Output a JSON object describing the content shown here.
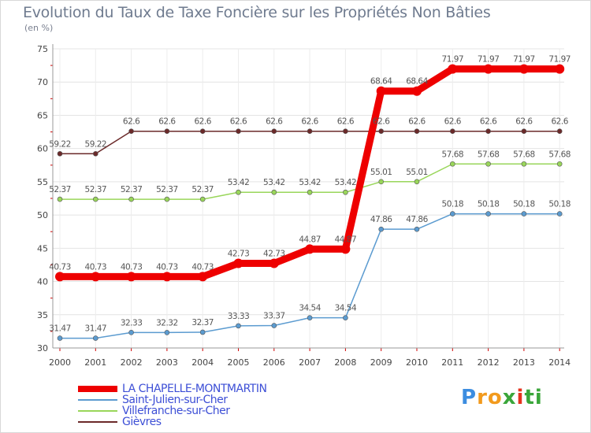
{
  "title": "Evolution du Taux de Taxe Foncière sur les Propriétés Non Bâties",
  "unit": "(en %)",
  "logo": {
    "letters": [
      "P",
      "r",
      "o",
      "x",
      "i",
      "t",
      "i"
    ],
    "colors": [
      "#3c8de0",
      "#f29a1d",
      "#f29a1d",
      "#3aa63a",
      "#e6321e",
      "#3aa63a",
      "#3aa63a"
    ]
  },
  "chart_data": {
    "type": "line",
    "title": "Evolution du Taux de Taxe Foncière sur les Propriétés Non Bâties",
    "ylabel": "(en %)",
    "xlabel": "",
    "ylim": [
      30,
      75
    ],
    "yticks": [
      "30",
      "35",
      "40",
      "45",
      "50",
      "55",
      "60",
      "65",
      "70",
      "75"
    ],
    "grid": true,
    "x": [
      "2000",
      "2001",
      "2002",
      "2003",
      "2004",
      "2005",
      "2006",
      "2007",
      "2008",
      "2009",
      "2010",
      "2011",
      "2012",
      "2013",
      "2014"
    ],
    "series": [
      {
        "name": "Gièvres",
        "color": "#6b2a2a",
        "values": [
          59.22,
          59.22,
          62.6,
          62.6,
          62.6,
          62.6,
          62.6,
          62.6,
          62.6,
          62.6,
          62.6,
          62.6,
          62.6,
          62.6,
          62.6
        ],
        "labels": [
          "59.22",
          "59.22",
          "62.6",
          "62.6",
          "62.6",
          "62.6",
          "62.6",
          "62.6",
          "62.6",
          "62.6",
          "62.6",
          "62.6",
          "62.6",
          "62.6",
          "62.6"
        ]
      },
      {
        "name": "Villefranche-sur-Cher",
        "color": "#99d65a",
        "values": [
          52.37,
          52.37,
          52.37,
          52.37,
          52.37,
          53.42,
          53.42,
          53.42,
          53.42,
          55.01,
          55.01,
          57.68,
          57.68,
          57.68,
          57.68
        ],
        "labels": [
          "52.37",
          "52.37",
          "52.37",
          "52.37",
          "52.37",
          "53.42",
          "53.42",
          "53.42",
          "53.42",
          "55.01",
          "55.01",
          "57.68",
          "57.68",
          "57.68",
          "57.68"
        ]
      },
      {
        "name": "Saint-Julien-sur-Cher",
        "color": "#5b9bd0",
        "values": [
          31.47,
          31.47,
          32.33,
          32.32,
          32.37,
          33.33,
          33.37,
          34.54,
          34.54,
          47.86,
          47.86,
          50.18,
          50.18,
          50.18,
          50.18
        ],
        "labels": [
          "31.47",
          "31.47",
          "32.33",
          "32.32",
          "32.37",
          "33.33",
          "33.37",
          "34.54",
          "34.54",
          "47.86",
          "47.86",
          "50.18",
          "50.18",
          "50.18",
          "50.18"
        ]
      },
      {
        "name": "LA CHAPELLE-MONTMARTIN",
        "color": "#ee0000",
        "values": [
          40.73,
          40.73,
          40.73,
          40.73,
          40.73,
          42.73,
          42.73,
          44.87,
          44.87,
          68.64,
          68.64,
          71.97,
          71.97,
          71.97,
          71.97
        ],
        "labels": [
          "40.73",
          "40.73",
          "40.73",
          "40.73",
          "40.73",
          "42.73",
          "42.73",
          "44.87",
          "44.87",
          "68.64",
          "68.64",
          "71.97",
          "71.97",
          "71.97",
          "71.97"
        ]
      }
    ],
    "legend": [
      {
        "name": "LA CHAPELLE-MONTMARTIN",
        "color": "#ee0000"
      },
      {
        "name": "Saint-Julien-sur-Cher",
        "color": "#5b9bd0"
      },
      {
        "name": "Villefranche-sur-Cher",
        "color": "#99d65a"
      },
      {
        "name": "Gièvres",
        "color": "#6b2a2a"
      }
    ]
  }
}
